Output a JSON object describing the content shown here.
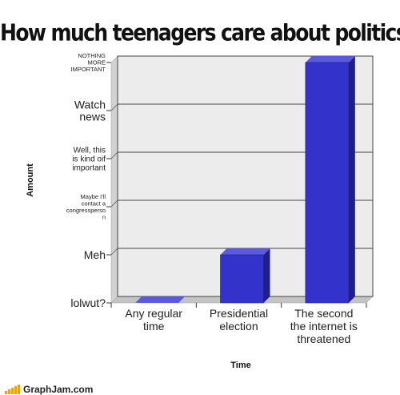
{
  "chart_data": {
    "type": "bar",
    "title": "How much teenagers care about politics",
    "xlabel": "Time",
    "ylabel": "Amount",
    "categories": [
      [
        "Any regular",
        "time"
      ],
      [
        "Presidential",
        "election"
      ],
      [
        "The second",
        "the internet is",
        "threatened"
      ]
    ],
    "y_levels": [
      {
        "label": [
          "lolwut?"
        ],
        "size": "large"
      },
      {
        "label": [
          "Meh"
        ],
        "size": "large"
      },
      {
        "label": [
          "Maybe I'll",
          "contact  a",
          "congressperso",
          "n"
        ],
        "size": "tiny"
      },
      {
        "label": [
          "Well, this",
          "is kind oif",
          "important"
        ],
        "size": "small"
      },
      {
        "label": [
          "Watch",
          "news"
        ],
        "size": "large"
      },
      {
        "label": [
          "NOTHING",
          "MORE",
          "IMPORTANT"
        ],
        "size": "tiny"
      }
    ],
    "values": [
      0,
      1.0,
      5.0
    ],
    "ylim": [
      0,
      5
    ],
    "grid": true,
    "bar_color": "#3333cc"
  },
  "watermark": "GraphJam.com"
}
